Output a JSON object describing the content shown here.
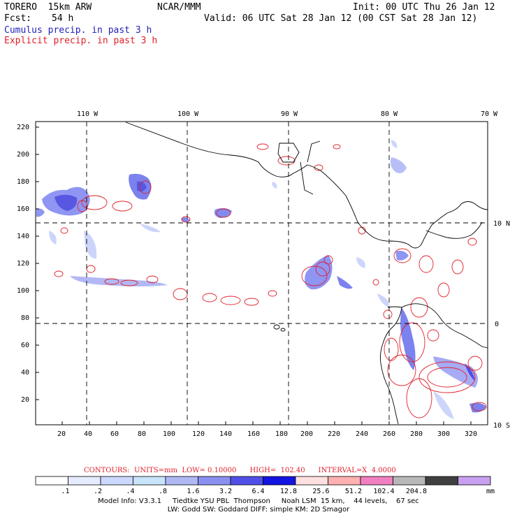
{
  "header": {
    "model": "TORERO  15km ARW",
    "fcst_label": "Fcst:",
    "fcst_value": "54 h",
    "center": "NCAR/MMM",
    "init": "Init: 00 UTC Thu 26 Jan 12",
    "valid": "Valid: 06 UTC Sat 28 Jan 12 (00 CST Sat 28 Jan 12)",
    "fields": [
      "Cumulus precip. in past 3 h",
      "Explicit precip. in past 3 h"
    ]
  },
  "map": {
    "top_lon_labels": [
      "110 W",
      "100 W",
      "90 W",
      "80 W",
      "70 W"
    ],
    "right_lat_labels": [
      "10 N",
      "0",
      "10 S"
    ],
    "y_ticks": [
      "220",
      "200",
      "180",
      "160",
      "140",
      "120",
      "100",
      "80",
      "60",
      "40",
      "20"
    ],
    "x_ticks": [
      "20",
      "40",
      "60",
      "80",
      "100",
      "120",
      "140",
      "160",
      "180",
      "200",
      "220",
      "240",
      "260",
      "280",
      "300",
      "320"
    ]
  },
  "contours": {
    "text": "CONTOURS:  UNITS=mm  LOW= 0.10000      HIGH=  102.40      INTERVAL=X  4.0000"
  },
  "colorbar": {
    "labels": [
      ".1",
      ".2",
      ".4",
      ".8",
      "1.6",
      "3.2",
      "6.4",
      "12.8",
      "25.6",
      "51.2",
      "102.4",
      "204.8"
    ],
    "units": "mm",
    "colors": [
      "#ffffff",
      "#e6ecff",
      "#ccd8ff",
      "#c8e4fa",
      "#b0b8f4",
      "#8a90f0",
      "#5050e8",
      "#1414e0",
      "#ffe0e0",
      "#ffb0b0",
      "#f080c0",
      "#b8b8b8",
      "#404040",
      "#c8a0f0"
    ]
  },
  "model_info": {
    "line1": "Model Info: V3.3.1     Tiedtke YSU PBL  Thompson     Noah LSM  15 km,    44 levels,    67 sec",
    "line2": "LW: Godd SW: Goddard DIFF: simple KM: 2D Smagor"
  }
}
